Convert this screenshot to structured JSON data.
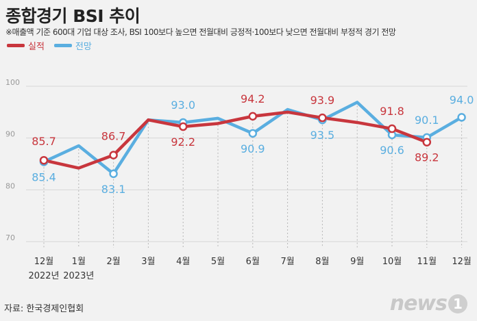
{
  "title": "종합경기 BSI 추이",
  "subtitle": "※매출액 기준 600대 기업 대상 조사, BSI 100보다 높으면 전월대비 긍정적·100보다 낮으면 전월대비 부정적 경기 전망",
  "legend": [
    {
      "label": "실적",
      "color": "#c8363d"
    },
    {
      "label": "전망",
      "color": "#5aaee0"
    }
  ],
  "source": "자료: 한국경제인협회",
  "logo": {
    "text": "news",
    "badge": "1"
  },
  "chart_data": {
    "type": "line",
    "categories": [
      "12월",
      "1월",
      "2월",
      "3월",
      "4월",
      "5월",
      "6월",
      "7월",
      "8월",
      "9월",
      "10월",
      "11월",
      "12월"
    ],
    "year_labels": [
      "2022년",
      "2023년"
    ],
    "ylim": [
      70,
      100
    ],
    "yticks": [
      70,
      80,
      90,
      100
    ],
    "series": [
      {
        "name": "실적",
        "color": "#c8363d",
        "values": [
          85.7,
          84.2,
          86.7,
          93.5,
          92.2,
          92.8,
          94.2,
          95.0,
          93.9,
          93.0,
          91.8,
          89.2,
          null
        ],
        "labels": [
          "85.7",
          "",
          "86.7",
          "",
          "92.2",
          "",
          "94.2",
          "",
          "93.9",
          "",
          "91.8",
          "89.2",
          ""
        ]
      },
      {
        "name": "전망",
        "color": "#5aaee0",
        "values": [
          85.4,
          88.5,
          83.1,
          93.5,
          93.0,
          93.8,
          90.9,
          95.5,
          93.5,
          96.9,
          90.6,
          90.1,
          94.0
        ],
        "labels": [
          "85.4",
          "",
          "83.1",
          "",
          "93.0",
          "",
          "90.9",
          "",
          "93.5",
          "",
          "90.6",
          "90.1",
          "94.0"
        ]
      }
    ]
  }
}
